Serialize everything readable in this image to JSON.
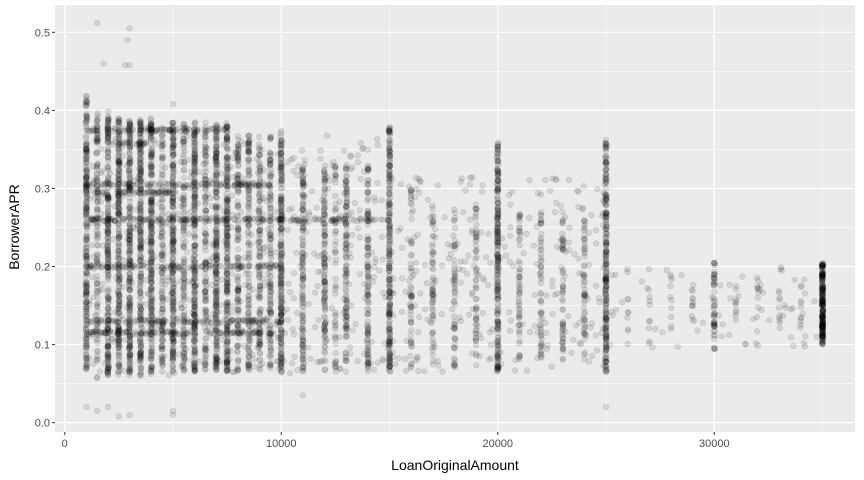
{
  "chart_data": {
    "type": "scatter",
    "title": "",
    "xlabel": "LoanOriginalAmount",
    "ylabel": "BorrowerAPR",
    "xlim": [
      -450,
      36500
    ],
    "ylim": [
      -0.012,
      0.535
    ],
    "x_ticks": [
      0,
      10000,
      20000,
      30000
    ],
    "x_tick_labels": [
      "0",
      "10000",
      "20000",
      "30000"
    ],
    "y_ticks": [
      0.0,
      0.1,
      0.2,
      0.3,
      0.4,
      0.5
    ],
    "y_tick_labels": [
      "0.0",
      "0.1",
      "0.2",
      "0.3",
      "0.4",
      "0.5"
    ],
    "grid": true,
    "legend": "none",
    "point_color": "#000000",
    "point_alpha": 0.1,
    "panel_background": "#ebebeb",
    "grid_color": "#ffffff",
    "columns": [
      {
        "x": 1000,
        "y_range": [
          0.065,
          0.42
        ],
        "density": "very-high"
      },
      {
        "x": 1500,
        "y_range": [
          0.055,
          0.4
        ],
        "density": "high"
      },
      {
        "x": 2000,
        "y_range": [
          0.06,
          0.4
        ],
        "density": "very-high"
      },
      {
        "x": 2500,
        "y_range": [
          0.06,
          0.39
        ],
        "density": "very-high"
      },
      {
        "x": 3000,
        "y_range": [
          0.06,
          0.39
        ],
        "density": "very-high"
      },
      {
        "x": 3500,
        "y_range": [
          0.06,
          0.39
        ],
        "density": "very-high"
      },
      {
        "x": 4000,
        "y_range": [
          0.06,
          0.39
        ],
        "density": "very-high"
      },
      {
        "x": 4500,
        "y_range": [
          0.065,
          0.385
        ],
        "density": "high"
      },
      {
        "x": 5000,
        "y_range": [
          0.065,
          0.385
        ],
        "density": "very-high"
      },
      {
        "x": 5500,
        "y_range": [
          0.065,
          0.385
        ],
        "density": "high"
      },
      {
        "x": 6000,
        "y_range": [
          0.065,
          0.385
        ],
        "density": "very-high"
      },
      {
        "x": 6500,
        "y_range": [
          0.065,
          0.385
        ],
        "density": "high"
      },
      {
        "x": 7000,
        "y_range": [
          0.065,
          0.385
        ],
        "density": "very-high"
      },
      {
        "x": 7500,
        "y_range": [
          0.065,
          0.385
        ],
        "density": "very-high"
      },
      {
        "x": 8000,
        "y_range": [
          0.065,
          0.37
        ],
        "density": "high"
      },
      {
        "x": 8500,
        "y_range": [
          0.065,
          0.37
        ],
        "density": "high"
      },
      {
        "x": 9000,
        "y_range": [
          0.065,
          0.37
        ],
        "density": "high"
      },
      {
        "x": 9500,
        "y_range": [
          0.065,
          0.37
        ],
        "density": "high"
      },
      {
        "x": 10000,
        "y_range": [
          0.065,
          0.375
        ],
        "density": "very-high"
      },
      {
        "x": 11000,
        "y_range": [
          0.065,
          0.33
        ],
        "density": "high"
      },
      {
        "x": 12000,
        "y_range": [
          0.065,
          0.33
        ],
        "density": "high"
      },
      {
        "x": 12500,
        "y_range": [
          0.065,
          0.33
        ],
        "density": "medium"
      },
      {
        "x": 13000,
        "y_range": [
          0.065,
          0.33
        ],
        "density": "high"
      },
      {
        "x": 14000,
        "y_range": [
          0.065,
          0.33
        ],
        "density": "high"
      },
      {
        "x": 15000,
        "y_range": [
          0.065,
          0.38
        ],
        "density": "very-high"
      },
      {
        "x": 16000,
        "y_range": [
          0.07,
          0.3
        ],
        "density": "medium"
      },
      {
        "x": 17000,
        "y_range": [
          0.07,
          0.28
        ],
        "density": "medium"
      },
      {
        "x": 18000,
        "y_range": [
          0.07,
          0.28
        ],
        "density": "medium"
      },
      {
        "x": 19000,
        "y_range": [
          0.07,
          0.28
        ],
        "density": "medium"
      },
      {
        "x": 20000,
        "y_range": [
          0.065,
          0.36
        ],
        "density": "very-high"
      },
      {
        "x": 21000,
        "y_range": [
          0.08,
          0.27
        ],
        "density": "medium"
      },
      {
        "x": 22000,
        "y_range": [
          0.08,
          0.27
        ],
        "density": "medium"
      },
      {
        "x": 23000,
        "y_range": [
          0.08,
          0.27
        ],
        "density": "medium"
      },
      {
        "x": 24000,
        "y_range": [
          0.08,
          0.26
        ],
        "density": "medium"
      },
      {
        "x": 25000,
        "y_range": [
          0.065,
          0.365
        ],
        "density": "very-high"
      },
      {
        "x": 26000,
        "y_range": [
          0.1,
          0.2
        ],
        "density": "low"
      },
      {
        "x": 27000,
        "y_range": [
          0.1,
          0.2
        ],
        "density": "low"
      },
      {
        "x": 28000,
        "y_range": [
          0.11,
          0.19
        ],
        "density": "low"
      },
      {
        "x": 29000,
        "y_range": [
          0.11,
          0.19
        ],
        "density": "low"
      },
      {
        "x": 30000,
        "y_range": [
          0.09,
          0.205
        ],
        "density": "medium"
      },
      {
        "x": 31000,
        "y_range": [
          0.12,
          0.18
        ],
        "density": "low"
      },
      {
        "x": 32000,
        "y_range": [
          0.11,
          0.19
        ],
        "density": "low"
      },
      {
        "x": 33000,
        "y_range": [
          0.12,
          0.18
        ],
        "density": "low"
      },
      {
        "x": 34000,
        "y_range": [
          0.12,
          0.18
        ],
        "density": "low"
      },
      {
        "x": 35000,
        "y_range": [
          0.1,
          0.205
        ],
        "density": "very-high"
      }
    ],
    "bands": [
      {
        "y": 0.375,
        "x_range": [
          1000,
          7500
        ]
      },
      {
        "y": 0.358,
        "x_range": [
          2000,
          4000
        ]
      },
      {
        "y": 0.305,
        "x_range": [
          1000,
          9500
        ]
      },
      {
        "y": 0.295,
        "x_range": [
          1000,
          5000
        ]
      },
      {
        "y": 0.26,
        "x_range": [
          1000,
          15000
        ]
      },
      {
        "y": 0.2,
        "x_range": [
          1000,
          10000
        ]
      },
      {
        "y": 0.13,
        "x_range": [
          1000,
          10000
        ]
      },
      {
        "y": 0.115,
        "x_range": [
          1000,
          10000
        ]
      }
    ],
    "outliers": [
      {
        "x": 1500,
        "y": 0.512
      },
      {
        "x": 3000,
        "y": 0.505
      },
      {
        "x": 2900,
        "y": 0.49
      },
      {
        "x": 1800,
        "y": 0.46
      },
      {
        "x": 2800,
        "y": 0.458
      },
      {
        "x": 3000,
        "y": 0.458
      },
      {
        "x": 5000,
        "y": 0.408
      },
      {
        "x": 1000,
        "y": 0.02
      },
      {
        "x": 1500,
        "y": 0.015
      },
      {
        "x": 2500,
        "y": 0.008
      },
      {
        "x": 3000,
        "y": 0.01
      },
      {
        "x": 5000,
        "y": 0.01
      },
      {
        "x": 5000,
        "y": 0.015
      },
      {
        "x": 25000,
        "y": 0.02
      },
      {
        "x": 2000,
        "y": 0.02
      },
      {
        "x": 11000,
        "y": 0.035
      }
    ]
  }
}
